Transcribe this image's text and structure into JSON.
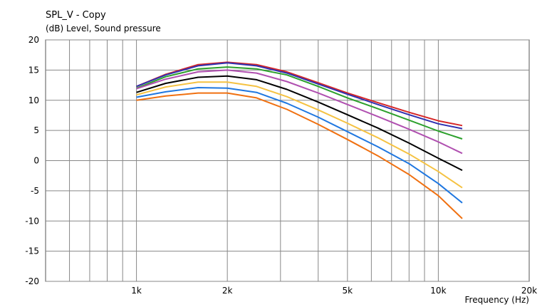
{
  "chart_data": {
    "type": "line",
    "title": "SPL_V - Copy",
    "subtitle": "(dB)  Level, Sound pressure",
    "xlabel": "Frequency  (Hz)",
    "ylabel": "",
    "x_scale": "log",
    "xlim": [
      500,
      20000
    ],
    "ylim": [
      -20,
      20
    ],
    "grid": true,
    "x_tick_labels": [
      {
        "value": 1000,
        "label": "1k"
      },
      {
        "value": 2000,
        "label": "2k"
      },
      {
        "value": 5000,
        "label": "5k"
      },
      {
        "value": 10000,
        "label": "10k"
      },
      {
        "value": 20000,
        "label": "20k"
      }
    ],
    "y_ticks": [
      20,
      15,
      10,
      5,
      0,
      -5,
      -10,
      -15,
      -20
    ],
    "x": [
      1000,
      1250,
      1600,
      2000,
      2500,
      3150,
      4000,
      5000,
      6300,
      8000,
      10000,
      12000
    ],
    "series": [
      {
        "color": "#d62728",
        "values": [
          12.3,
          14.3,
          15.9,
          16.3,
          15.9,
          14.7,
          12.9,
          11.2,
          9.6,
          8.0,
          6.6,
          5.8
        ]
      },
      {
        "color": "#3030b0",
        "values": [
          12.3,
          14.2,
          15.7,
          16.2,
          15.7,
          14.5,
          12.7,
          11.0,
          9.3,
          7.6,
          6.1,
          5.3
        ]
      },
      {
        "color": "#2ca02c",
        "values": [
          12.0,
          13.9,
          15.2,
          15.5,
          15.2,
          14.2,
          12.3,
          10.4,
          8.6,
          6.7,
          4.9,
          3.6
        ]
      },
      {
        "color": "#b050b0",
        "values": [
          11.9,
          13.5,
          14.7,
          15.0,
          14.5,
          13.1,
          11.2,
          9.3,
          7.3,
          5.2,
          3.1,
          1.2
        ]
      },
      {
        "color": "#000000",
        "values": [
          11.3,
          12.8,
          13.8,
          14.0,
          13.4,
          11.8,
          9.7,
          7.6,
          5.4,
          2.9,
          0.4,
          -1.6
        ]
      },
      {
        "color": "#f5c242",
        "values": [
          10.9,
          12.2,
          13.0,
          13.0,
          12.3,
          10.6,
          8.4,
          6.2,
          3.8,
          1.1,
          -1.8,
          -4.5
        ]
      },
      {
        "color": "#1f77e0",
        "values": [
          10.5,
          11.4,
          12.1,
          12.0,
          11.3,
          9.5,
          7.2,
          4.8,
          2.3,
          -0.5,
          -3.8,
          -7.0
        ]
      },
      {
        "color": "#f07010",
        "values": [
          10.0,
          10.7,
          11.2,
          11.2,
          10.4,
          8.5,
          6.0,
          3.5,
          0.8,
          -2.3,
          -5.8,
          -9.6
        ]
      }
    ]
  }
}
